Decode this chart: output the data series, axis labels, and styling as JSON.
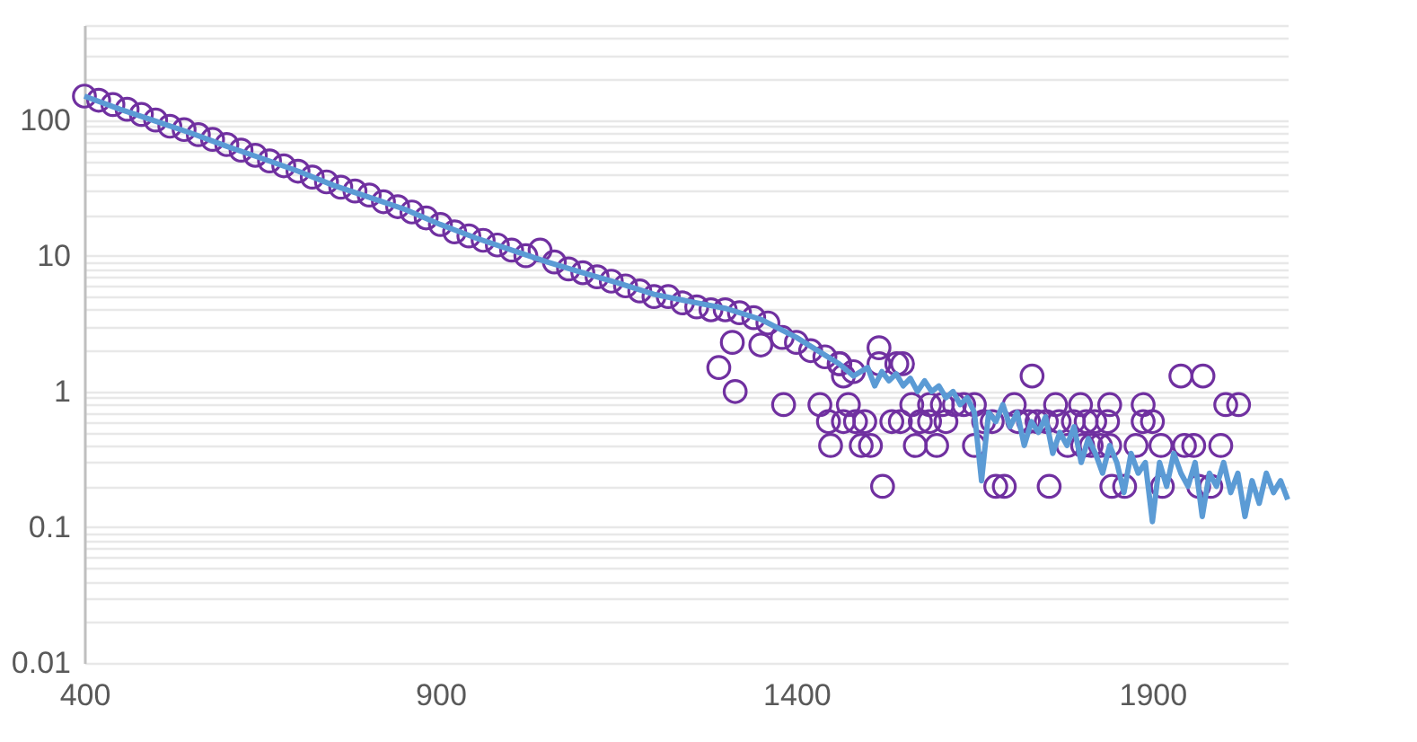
{
  "chart_data": {
    "type": "scatter",
    "log": "y",
    "grid": "y",
    "xlim": [
      400,
      2090
    ],
    "xticks": [
      400,
      900,
      1400,
      1900
    ],
    "ylim": [
      0.01,
      500
    ],
    "yticks": [
      0.01,
      {
        "value": 0.02,
        "label": null
      },
      {
        "value": 0.03,
        "label": null
      },
      {
        "value": 0.04,
        "label": null
      },
      {
        "value": 0.05,
        "label": null
      },
      {
        "value": 0.06,
        "label": null
      },
      {
        "value": 0.07,
        "label": null
      },
      {
        "value": 0.08,
        "label": null
      },
      {
        "value": 0.09,
        "label": null
      },
      0.1,
      {
        "value": 0.2,
        "label": null
      },
      {
        "value": 0.3,
        "label": null
      },
      {
        "value": 0.4,
        "label": null
      },
      {
        "value": 0.5,
        "label": null
      },
      {
        "value": 0.6,
        "label": null
      },
      {
        "value": 0.7,
        "label": null
      },
      {
        "value": 0.8,
        "label": null
      },
      {
        "value": 0.9,
        "label": null
      },
      1,
      {
        "value": 2,
        "label": null
      },
      {
        "value": 3,
        "label": null
      },
      {
        "value": 4,
        "label": null
      },
      {
        "value": 5,
        "label": null
      },
      {
        "value": 6,
        "label": null
      },
      {
        "value": 7,
        "label": null
      },
      {
        "value": 8,
        "label": null
      },
      {
        "value": 9,
        "label": null
      },
      10,
      {
        "value": 20,
        "label": null
      },
      {
        "value": 30,
        "label": null
      },
      {
        "value": 40,
        "label": null
      },
      {
        "value": 50,
        "label": null
      },
      {
        "value": 60,
        "label": null
      },
      {
        "value": 70,
        "label": null
      },
      {
        "value": 80,
        "label": null
      },
      {
        "value": 90,
        "label": null
      },
      100,
      {
        "value": 200,
        "label": null
      },
      {
        "value": 300,
        "label": null
      },
      {
        "value": 400,
        "label": null
      },
      {
        "value": 500,
        "label": null
      }
    ],
    "series": [
      {
        "marker": "circle",
        "color": "#7030a0",
        "x": [
          400,
          420,
          440,
          460,
          480,
          500,
          520,
          540,
          560,
          580,
          600,
          620,
          640,
          660,
          680,
          700,
          720,
          740,
          760,
          780,
          800,
          820,
          840,
          860,
          880,
          900,
          920,
          940,
          960,
          980,
          1000,
          1020,
          1040,
          1060,
          1080,
          1100,
          1120,
          1140,
          1160,
          1180,
          1200,
          1220,
          1240,
          1260,
          1280,
          1300,
          1320,
          1340,
          1360,
          1380,
          1400,
          1420,
          1440,
          1460,
          1480,
          1291,
          1314,
          1310,
          1350,
          1521,
          1680,
          1692,
          1755,
          1843,
          1861,
          1914,
          1965,
          1982,
          1448,
          1491,
          1504,
          1567,
          1597,
          1650,
          1781,
          1802,
          1814,
          1827,
          1840,
          1877,
          1912,
          1945,
          1958,
          1996,
          1445,
          1466,
          1483,
          1496,
          1534,
          1546,
          1574,
          1587,
          1610,
          1663,
          1675,
          1711,
          1726,
          1738,
          1751,
          1769,
          1789,
          1807,
          1819,
          1837,
          1887,
          1900,
          1382,
          1433,
          1473,
          1562,
          1587,
          1605,
          1622,
          1635,
          1650,
          1706,
          1764,
          1799,
          1840,
          1887,
          2003,
          1466,
          1731,
          1940,
          1971,
          2021,
          1461,
          1516,
          1541,
          1549,
          1516
        ],
        "values": [
          150,
          140,
          130,
          120,
          110,
          100,
          90,
          85,
          78,
          72,
          66,
          60,
          55,
          50,
          46,
          42,
          38,
          35,
          32,
          30,
          28,
          25,
          23,
          21,
          19,
          17,
          15,
          14,
          13,
          12,
          11,
          10,
          11,
          9,
          8,
          7.5,
          7,
          6.5,
          6,
          5.5,
          5,
          5,
          4.5,
          4.2,
          4,
          4,
          3.8,
          3.5,
          3.2,
          2.5,
          2.3,
          2,
          1.8,
          1.6,
          1.4,
          1.5,
          1,
          2.3,
          2.2,
          0.2,
          0.2,
          0.2,
          0.2,
          0.2,
          0.2,
          0.2,
          0.2,
          0.2,
          0.4,
          0.4,
          0.4,
          0.4,
          0.4,
          0.4,
          0.4,
          0.4,
          0.4,
          0.4,
          0.4,
          0.4,
          0.4,
          0.4,
          0.4,
          0.4,
          0.6,
          0.6,
          0.6,
          0.6,
          0.6,
          0.6,
          0.6,
          0.6,
          0.6,
          0.6,
          0.6,
          0.6,
          0.6,
          0.6,
          0.6,
          0.6,
          0.6,
          0.6,
          0.6,
          0.6,
          0.6,
          0.6,
          0.8,
          0.8,
          0.8,
          0.8,
          0.8,
          0.8,
          0.8,
          0.8,
          0.8,
          0.8,
          0.8,
          0.8,
          0.8,
          0.8,
          0.8,
          1.3,
          1.3,
          1.3,
          1.3,
          0.8,
          1.6,
          1.6,
          1.6,
          1.6,
          2.1
        ]
      },
      {
        "type": "line",
        "line_style": "solid",
        "marker": "none",
        "color": "#5b9bd5",
        "x": [
          400,
          450,
          500,
          550,
          600,
          650,
          700,
          750,
          800,
          850,
          900,
          950,
          1000,
          1050,
          1100,
          1150,
          1200,
          1250,
          1300,
          1350,
          1400,
          1430,
          1460,
          1480,
          1500,
          1510,
          1520,
          1530,
          1540,
          1550,
          1560,
          1570,
          1580,
          1590,
          1600,
          1610,
          1620,
          1630,
          1640,
          1650,
          1660,
          1670,
          1680,
          1690,
          1700,
          1710,
          1720,
          1730,
          1740,
          1750,
          1760,
          1770,
          1780,
          1790,
          1800,
          1810,
          1820,
          1830,
          1840,
          1850,
          1860,
          1870,
          1880,
          1890,
          1900,
          1910,
          1920,
          1930,
          1940,
          1950,
          1960,
          1970,
          1980,
          1990,
          2000,
          2010,
          2020,
          2030,
          2040,
          2050,
          2060,
          2070,
          2080,
          2090
        ],
        "values": [
          150,
          120,
          98,
          80,
          64,
          52,
          42,
          33,
          27,
          22,
          17,
          13.5,
          11,
          9,
          7.5,
          6.3,
          5.2,
          4.6,
          4.1,
          3.4,
          2.5,
          2,
          1.6,
          1.3,
          1.5,
          1.1,
          1.4,
          1.2,
          1.35,
          1.1,
          1.25,
          1,
          1.2,
          1,
          1.1,
          0.9,
          1,
          0.8,
          0.9,
          0.7,
          0.22,
          0.7,
          0.6,
          0.8,
          0.55,
          0.7,
          0.4,
          0.6,
          0.5,
          0.65,
          0.35,
          0.5,
          0.4,
          0.55,
          0.3,
          0.45,
          0.35,
          0.25,
          0.4,
          0.3,
          0.18,
          0.35,
          0.25,
          0.3,
          0.11,
          0.3,
          0.2,
          0.35,
          0.25,
          0.2,
          0.3,
          0.12,
          0.25,
          0.2,
          0.3,
          0.18,
          0.25,
          0.12,
          0.22,
          0.15,
          0.25,
          0.18,
          0.22,
          0.16
        ]
      }
    ]
  }
}
